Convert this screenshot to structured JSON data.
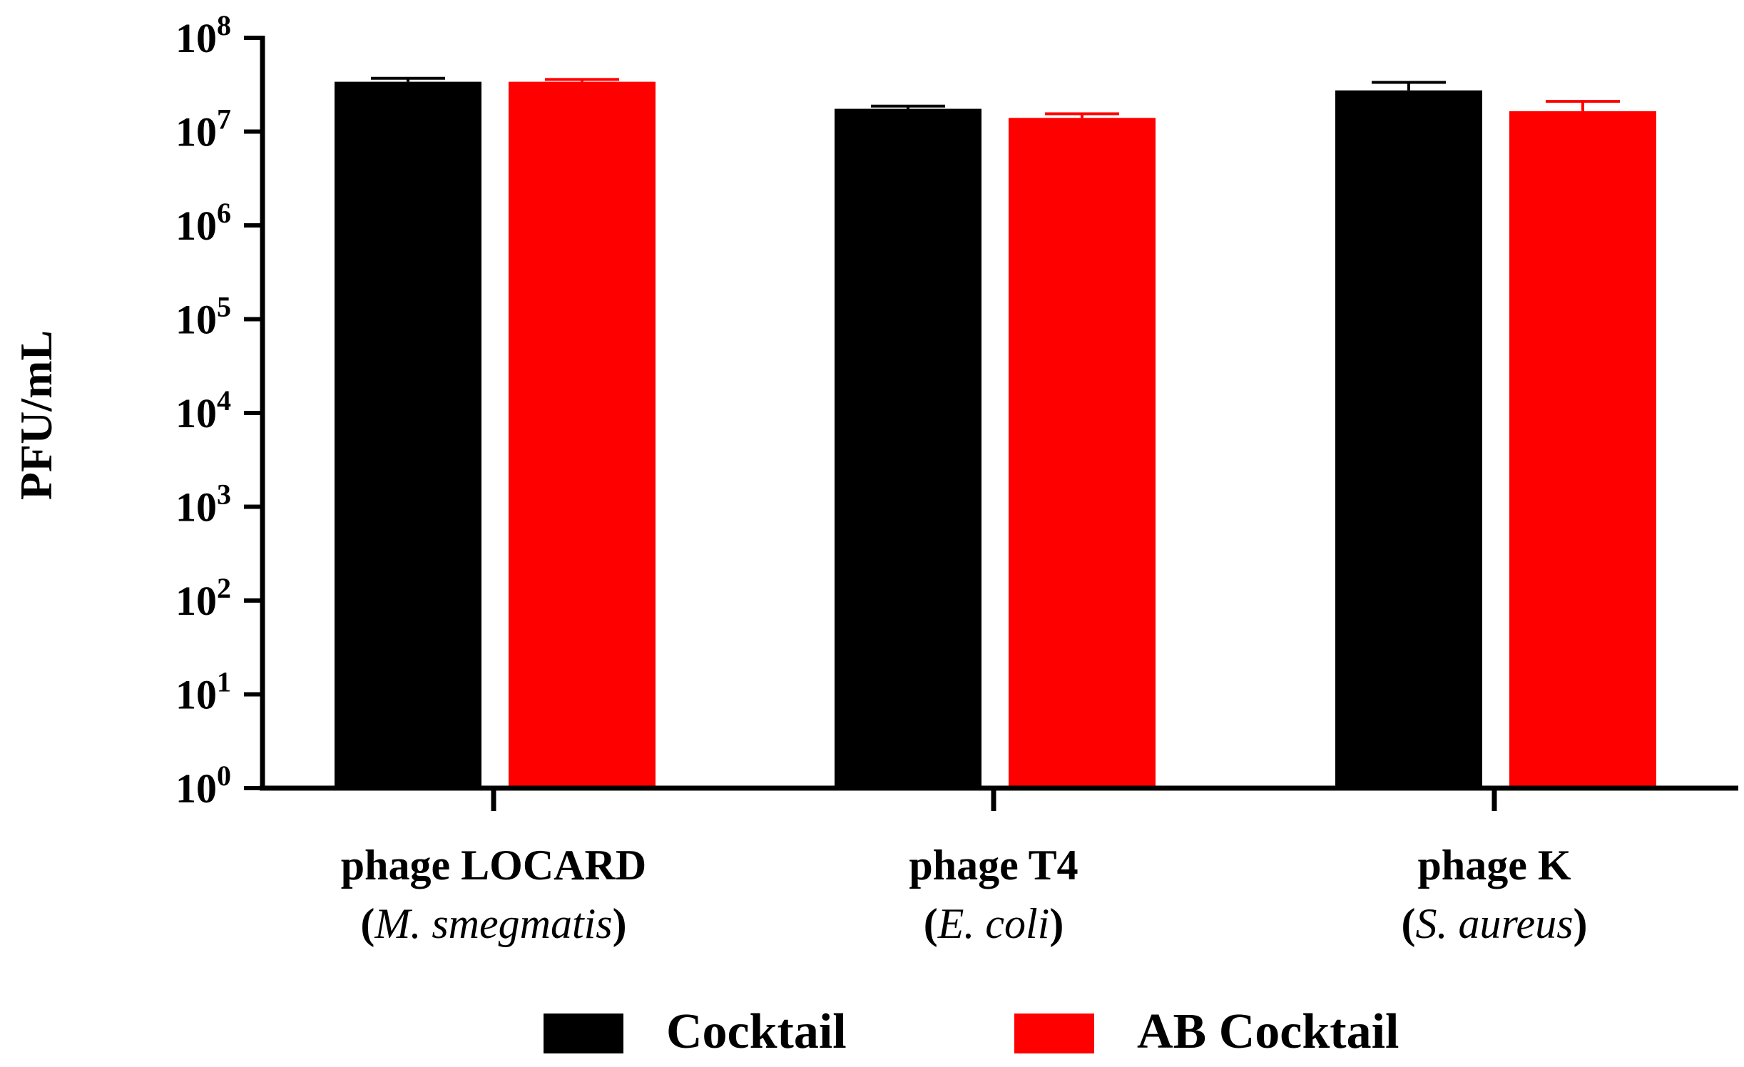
{
  "chart_data": {
    "type": "bar",
    "scale": "log",
    "ylabel": "PFU/mL",
    "ylim": [
      1,
      100000000
    ],
    "y_ticks": [
      {
        "base": "10",
        "exp": "8"
      },
      {
        "base": "10",
        "exp": "7"
      },
      {
        "base": "10",
        "exp": "6"
      },
      {
        "base": "10",
        "exp": "5"
      },
      {
        "base": "10",
        "exp": "4"
      },
      {
        "base": "10",
        "exp": "3"
      },
      {
        "base": "10",
        "exp": "2"
      },
      {
        "base": "10",
        "exp": "1"
      },
      {
        "base": "10",
        "exp": "0"
      }
    ],
    "categories": [
      {
        "line1": "phage LOCARD",
        "line2_open": "(",
        "line2_italic": "M. smegmatis",
        "line2_close": ")"
      },
      {
        "line1": "phage T4",
        "line2_open": "(",
        "line2_italic": "E. coli",
        "line2_close": ")"
      },
      {
        "line1": "phage K",
        "line2_open": "(",
        "line2_italic": "S. aureus",
        "line2_close": ")"
      }
    ],
    "series": [
      {
        "name": "Cocktail",
        "color": "#000000",
        "values": [
          34000000,
          17500000,
          27500000
        ],
        "error": [
          3000000,
          1200000,
          6000000
        ]
      },
      {
        "name": "AB Cocktail",
        "color": "#ff0000",
        "values": [
          34000000,
          14000000,
          16500000
        ],
        "error": [
          2000000,
          1500000,
          4500000
        ]
      }
    ],
    "legend_position": "bottom"
  }
}
